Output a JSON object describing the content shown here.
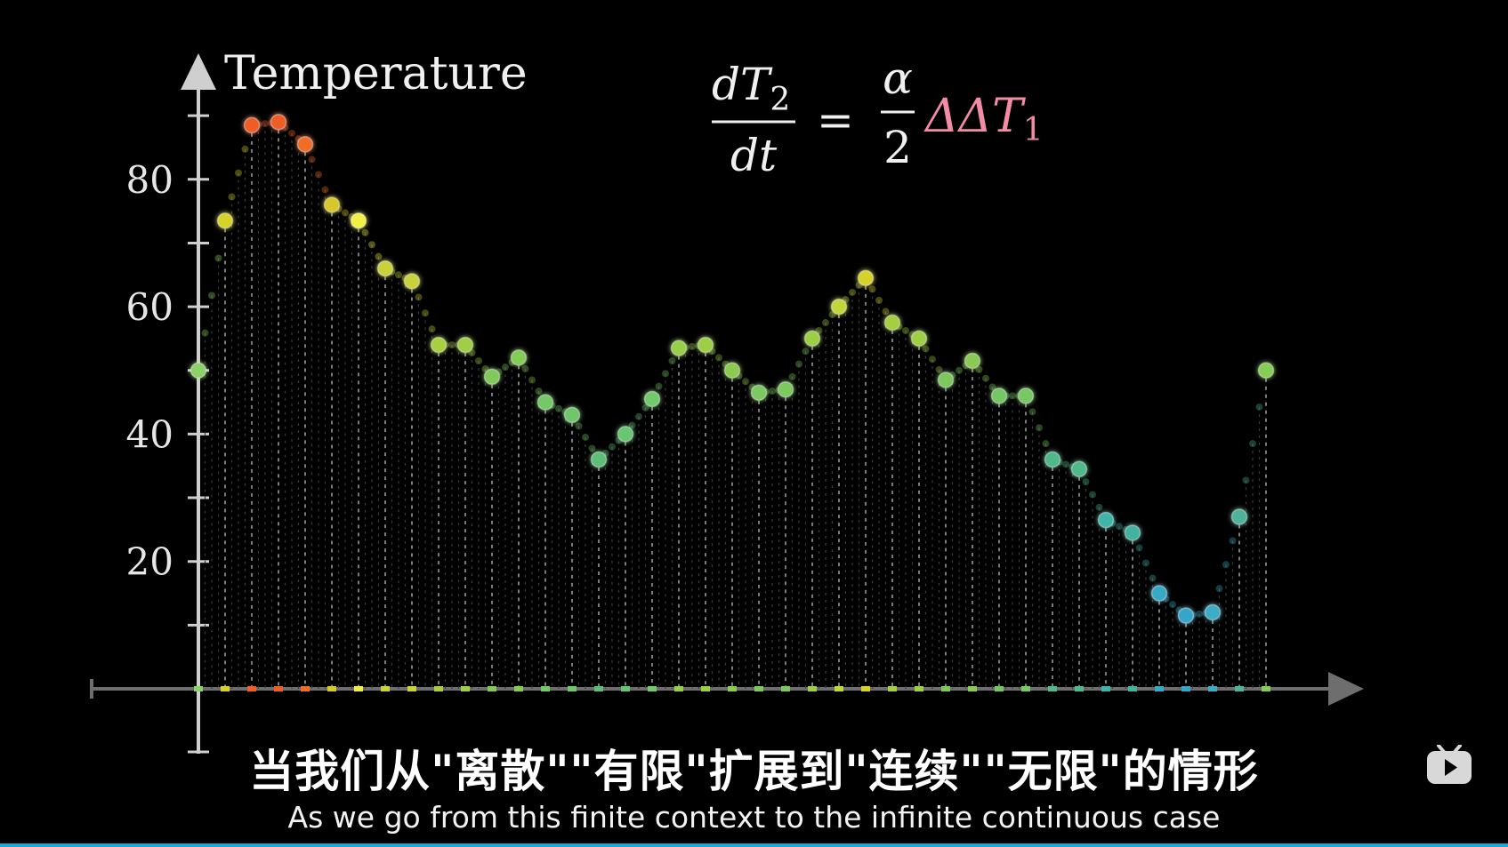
{
  "chart_data": {
    "type": "scatter",
    "ylabel": "Temperature",
    "y_ticks": [
      20,
      40,
      60,
      80
    ],
    "ylim": [
      0,
      95
    ],
    "grid": false,
    "x": [
      0,
      1,
      2,
      3,
      4,
      5,
      6,
      7,
      8,
      9,
      10,
      11,
      12,
      13,
      14,
      15,
      16,
      17,
      18,
      19,
      20,
      21,
      22,
      23,
      24,
      25,
      26,
      27,
      28,
      29,
      30,
      31,
      32,
      33,
      34,
      35,
      36,
      37,
      38,
      39,
      40
    ],
    "values": [
      50,
      73.5,
      88.5,
      89,
      85.5,
      76,
      73.5,
      66,
      64,
      54,
      54,
      49,
      52,
      45,
      43,
      36,
      40,
      45.5,
      53.5,
      54,
      50,
      46.5,
      47,
      55,
      60,
      64.5,
      57.5,
      55,
      48.5,
      51.5,
      46,
      46,
      36,
      34.5,
      26.5,
      24.5,
      15,
      11.5,
      12,
      27,
      50
    ],
    "colors": [
      "#8fd169",
      "#d6d22b",
      "#ef5d28",
      "#ef5d28",
      "#ef6d26",
      "#d6c72a",
      "#f2ef46",
      "#c9d23a",
      "#c9d23a",
      "#a8cf3f",
      "#9fcf45",
      "#80c95a",
      "#83cc55",
      "#73c867",
      "#6fc66b",
      "#5dbf77",
      "#67c672",
      "#72c86a",
      "#97cf48",
      "#9ccf45",
      "#8bcc4f",
      "#7bc95e",
      "#7bc95e",
      "#9ccf45",
      "#c2d63a",
      "#d6d22b",
      "#a4cf42",
      "#9fcf45",
      "#7cc85e",
      "#88ca53",
      "#75c765",
      "#78c764",
      "#4fb98b",
      "#4fb98b",
      "#3fb4a8",
      "#43b3a0",
      "#36a9c6",
      "#34a6c9",
      "#3cadc5",
      "#4db39b",
      "#86cd56"
    ],
    "equation": {
      "lhs_top": "dT",
      "lhs_top_sub": "2",
      "lhs_bottom": "dt",
      "equals": "=",
      "rhs_top": "α",
      "rhs_bottom": "2",
      "rhs_term": "ΔΔT",
      "rhs_term_sub": "1",
      "rhs_term_color": "#f28ba5"
    }
  },
  "subtitles": {
    "chinese": "当我们从\"离散\"\"有限\"扩展到\"连续\"\"无限\"的情形",
    "english": "As we go from this finite context to the infinite continuous case"
  },
  "player": {
    "play_icon": "play-icon",
    "progress_color": "#1aa8d8"
  }
}
